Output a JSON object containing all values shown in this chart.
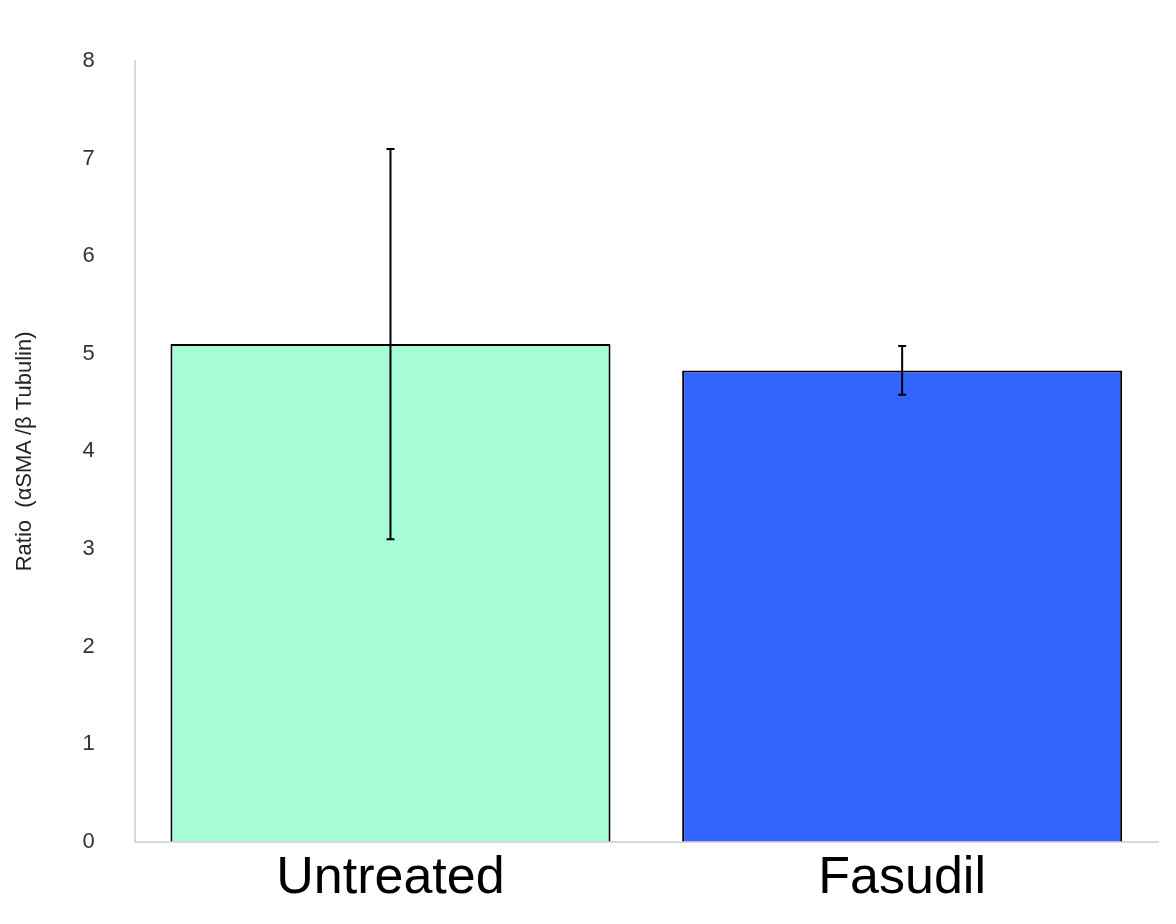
{
  "chart_data": {
    "type": "bar",
    "ylabel": "Ratio  (αSMA /β Tubulin)",
    "categories": [
      "Untreated",
      "Fasudil"
    ],
    "values": [
      5.1,
      4.83
    ],
    "colors": [
      "#a6fcd6",
      "#3366ff"
    ],
    "errors": [
      2.0,
      0.25
    ],
    "ylim": [
      0,
      8
    ],
    "yticks": [
      0,
      1,
      2,
      3,
      4,
      5,
      6,
      7,
      8
    ],
    "grid": false,
    "legend": false
  }
}
